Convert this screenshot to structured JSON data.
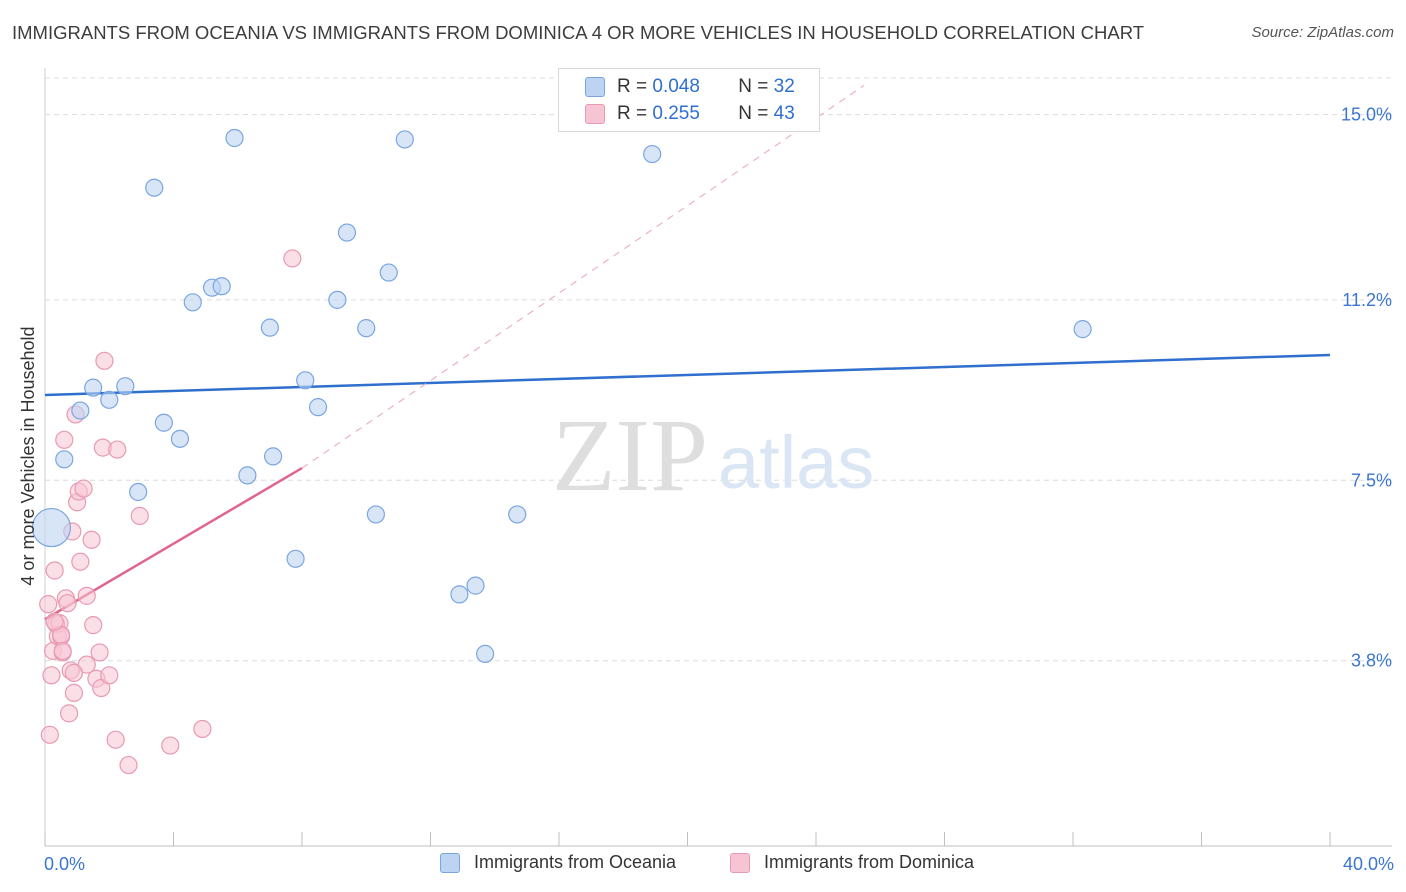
{
  "header": {
    "title": "IMMIGRANTS FROM OCEANIA VS IMMIGRANTS FROM DOMINICA 4 OR MORE VEHICLES IN HOUSEHOLD CORRELATION CHART",
    "source": "Source: ZipAtlas.com"
  },
  "watermark": {
    "zip": "ZIP",
    "atlas": "atlas"
  },
  "legend": {
    "series1": {
      "r_label": "R =",
      "r_value": "0.048",
      "n_label": "N =",
      "n_value": "32"
    },
    "series2": {
      "r_label": "R =",
      "r_value": "0.255",
      "n_label": "N =",
      "n_value": "43"
    }
  },
  "colors": {
    "blue_fill": "#bcd3f2",
    "blue_stroke": "#7aa6e0",
    "blue_line": "#2f6fce",
    "pink_fill": "#f7c4d3",
    "pink_stroke": "#e89ab2",
    "pink_line": "#e0658f",
    "axis_text": "#3b75cf",
    "grid": "#dcdcdc"
  },
  "chart_data": {
    "type": "scatter",
    "title": "IMMIGRANTS FROM OCEANIA VS IMMIGRANTS FROM DOMINICA 4 OR MORE VEHICLES IN HOUSEHOLD CORRELATION CHART",
    "xlabel": "",
    "ylabel": "4 or more Vehicles in Household",
    "xlim": [
      0,
      40
    ],
    "ylim": [
      0,
      15.75
    ],
    "x_tick_labels": [
      "0.0%",
      "40.0%"
    ],
    "y_ticks": [
      3.8,
      7.5,
      11.2,
      15.0
    ],
    "y_tick_labels": [
      "3.8%",
      "7.5%",
      "11.2%",
      "15.0%"
    ],
    "series": [
      {
        "name": "Immigrants from Oceania",
        "color": "blue",
        "r": 0.048,
        "n": 32,
        "trend": {
          "x": [
            0,
            40
          ],
          "y": [
            9.25,
            10.07
          ],
          "style": "solid"
        },
        "points": [
          {
            "x": 0.2,
            "y": 6.53,
            "big": true
          },
          {
            "x": 0.6,
            "y": 7.93
          },
          {
            "x": 1.1,
            "y": 8.93
          },
          {
            "x": 1.5,
            "y": 9.4
          },
          {
            "x": 2.0,
            "y": 9.15
          },
          {
            "x": 2.5,
            "y": 9.43
          },
          {
            "x": 2.9,
            "y": 7.26
          },
          {
            "x": 3.4,
            "y": 13.5
          },
          {
            "x": 3.7,
            "y": 8.68
          },
          {
            "x": 4.2,
            "y": 8.35
          },
          {
            "x": 4.6,
            "y": 11.15
          },
          {
            "x": 5.2,
            "y": 11.45
          },
          {
            "x": 5.5,
            "y": 11.48
          },
          {
            "x": 5.9,
            "y": 14.52
          },
          {
            "x": 6.3,
            "y": 7.6
          },
          {
            "x": 7.0,
            "y": 10.63
          },
          {
            "x": 7.1,
            "y": 7.99
          },
          {
            "x": 7.8,
            "y": 5.89
          },
          {
            "x": 8.1,
            "y": 9.55
          },
          {
            "x": 8.5,
            "y": 9.0
          },
          {
            "x": 9.1,
            "y": 11.2
          },
          {
            "x": 9.4,
            "y": 12.58
          },
          {
            "x": 10.0,
            "y": 10.62
          },
          {
            "x": 10.3,
            "y": 6.8
          },
          {
            "x": 10.7,
            "y": 11.76
          },
          {
            "x": 11.2,
            "y": 14.49
          },
          {
            "x": 12.9,
            "y": 5.16
          },
          {
            "x": 13.4,
            "y": 5.34
          },
          {
            "x": 13.7,
            "y": 3.94
          },
          {
            "x": 14.7,
            "y": 6.8
          },
          {
            "x": 18.9,
            "y": 14.19
          },
          {
            "x": 32.3,
            "y": 10.6
          }
        ]
      },
      {
        "name": "Immigrants from Dominica",
        "color": "pink",
        "r": 0.255,
        "n": 43,
        "trend": {
          "x": [
            0,
            8.0
          ],
          "y": [
            4.65,
            7.75
          ],
          "style": "solid",
          "extended_to": [
            25.5,
            15.6
          ],
          "extended_style": "dashed"
        },
        "points": [
          {
            "x": 0.1,
            "y": 4.96
          },
          {
            "x": 0.15,
            "y": 2.28
          },
          {
            "x": 0.2,
            "y": 3.5
          },
          {
            "x": 0.25,
            "y": 4.0
          },
          {
            "x": 0.3,
            "y": 5.65
          },
          {
            "x": 0.35,
            "y": 4.55
          },
          {
            "x": 0.4,
            "y": 4.3
          },
          {
            "x": 0.45,
            "y": 4.57
          },
          {
            "x": 0.5,
            "y": 4.3
          },
          {
            "x": 0.55,
            "y": 3.97
          },
          {
            "x": 0.6,
            "y": 8.33
          },
          {
            "x": 0.65,
            "y": 5.08
          },
          {
            "x": 0.7,
            "y": 4.98
          },
          {
            "x": 0.75,
            "y": 2.72
          },
          {
            "x": 0.8,
            "y": 3.6
          },
          {
            "x": 0.85,
            "y": 6.45
          },
          {
            "x": 0.9,
            "y": 3.14
          },
          {
            "x": 0.95,
            "y": 8.85
          },
          {
            "x": 1.0,
            "y": 7.05
          },
          {
            "x": 1.05,
            "y": 7.27
          },
          {
            "x": 1.1,
            "y": 5.83
          },
          {
            "x": 1.2,
            "y": 7.33
          },
          {
            "x": 1.3,
            "y": 5.13
          },
          {
            "x": 1.45,
            "y": 6.28
          },
          {
            "x": 1.5,
            "y": 4.53
          },
          {
            "x": 1.6,
            "y": 3.43
          },
          {
            "x": 1.7,
            "y": 3.97
          },
          {
            "x": 1.75,
            "y": 3.24
          },
          {
            "x": 1.8,
            "y": 8.17
          },
          {
            "x": 1.85,
            "y": 9.95
          },
          {
            "x": 2.0,
            "y": 3.5
          },
          {
            "x": 2.2,
            "y": 2.18
          },
          {
            "x": 2.25,
            "y": 8.13
          },
          {
            "x": 2.6,
            "y": 1.66
          },
          {
            "x": 2.95,
            "y": 6.77
          },
          {
            "x": 3.9,
            "y": 2.06
          },
          {
            "x": 4.9,
            "y": 2.4
          },
          {
            "x": 7.7,
            "y": 12.05
          },
          {
            "x": 0.5,
            "y": 4.33
          },
          {
            "x": 0.3,
            "y": 4.6
          },
          {
            "x": 1.3,
            "y": 3.72
          },
          {
            "x": 0.55,
            "y": 4.0
          },
          {
            "x": 0.9,
            "y": 3.55
          }
        ]
      }
    ]
  }
}
